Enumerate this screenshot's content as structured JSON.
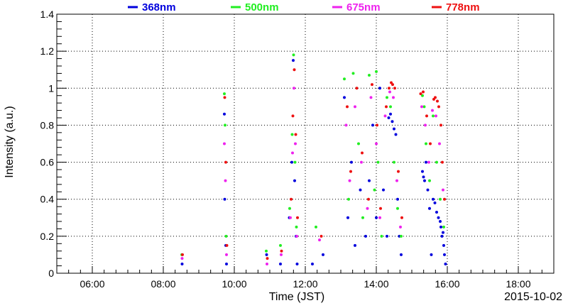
{
  "chart_data": {
    "type": "scatter",
    "title": "",
    "xlabel": "Time (JST)",
    "ylabel": "Intensity (a.u.)",
    "date_label": "2015-10-02",
    "x_unit": "hour of day (JST)",
    "xlim": [
      5.0,
      19.0
    ],
    "ylim": [
      0,
      1.4
    ],
    "grid": true,
    "legend_position": "top",
    "x_ticks": [
      {
        "value": 6,
        "label": "06:00"
      },
      {
        "value": 8,
        "label": "08:00"
      },
      {
        "value": 10,
        "label": "10:00"
      },
      {
        "value": 12,
        "label": "12:00"
      },
      {
        "value": 14,
        "label": "14:00"
      },
      {
        "value": 16,
        "label": "16:00"
      },
      {
        "value": 18,
        "label": "18:00"
      }
    ],
    "y_ticks": [
      {
        "value": 0,
        "label": "0"
      },
      {
        "value": 0.2,
        "label": "0.2"
      },
      {
        "value": 0.4,
        "label": "0.4"
      },
      {
        "value": 0.6,
        "label": "0.6"
      },
      {
        "value": 0.8,
        "label": "0.8"
      },
      {
        "value": 1.0,
        "label": "1"
      },
      {
        "value": 1.2,
        "label": "1.2"
      },
      {
        "value": 1.4,
        "label": "1.4"
      }
    ],
    "series": [
      {
        "name": "368nm",
        "color": "#0000dd",
        "x": [
          8.53,
          9.72,
          9.73,
          9.76,
          9.78,
          10.91,
          11.3,
          11.55,
          11.62,
          11.66,
          11.7,
          11.74,
          11.77,
          12.2,
          12.5,
          13.1,
          13.2,
          13.3,
          13.4,
          13.55,
          13.7,
          13.8,
          13.9,
          14.0,
          14.1,
          14.2,
          14.3,
          14.35,
          14.4,
          14.45,
          14.5,
          14.55,
          14.6,
          14.65,
          14.7,
          15.3,
          15.33,
          15.36,
          15.4,
          15.45,
          15.5,
          15.55,
          15.6,
          15.65,
          15.7,
          15.75,
          15.8,
          15.82,
          15.85,
          15.88,
          15.9,
          15.92,
          15.95
        ],
        "y": [
          0.05,
          0.86,
          0.4,
          0.15,
          0.05,
          0.1,
          0.05,
          0.3,
          0.6,
          1.15,
          0.5,
          0.2,
          0.05,
          0.05,
          0.1,
          0.95,
          0.3,
          0.6,
          0.15,
          0.45,
          0.2,
          0.5,
          0.8,
          0.3,
          1.0,
          0.45,
          0.2,
          0.84,
          0.86,
          0.82,
          0.78,
          0.75,
          0.4,
          0.2,
          0.1,
          0.55,
          0.52,
          0.5,
          0.6,
          0.45,
          0.35,
          0.1,
          0.4,
          0.38,
          0.33,
          0.3,
          0.28,
          0.25,
          0.2,
          0.22,
          0.15,
          0.1,
          0.05
        ]
      },
      {
        "name": "500nm",
        "color": "#22ee22",
        "x": [
          8.52,
          9.72,
          9.74,
          9.77,
          10.9,
          11.3,
          11.56,
          11.63,
          11.67,
          11.71,
          11.75,
          12.3,
          13.1,
          13.22,
          13.35,
          13.5,
          13.62,
          13.8,
          13.95,
          14.0,
          14.05,
          14.15,
          14.3,
          14.4,
          14.5,
          14.6,
          14.7,
          15.3,
          15.35,
          15.4,
          15.5,
          15.6,
          15.7,
          15.8,
          15.9
        ],
        "y": [
          0.1,
          0.97,
          0.8,
          0.2,
          0.12,
          0.15,
          0.35,
          0.75,
          1.18,
          0.6,
          0.25,
          0.25,
          1.05,
          0.4,
          1.08,
          0.7,
          0.3,
          1.07,
          0.45,
          1.09,
          0.6,
          0.2,
          0.95,
          0.9,
          0.6,
          0.35,
          0.2,
          0.96,
          0.9,
          0.7,
          0.5,
          0.85,
          0.6,
          0.4,
          0.25
        ]
      },
      {
        "name": "675nm",
        "color": "#ee22ee",
        "x": [
          8.53,
          9.72,
          9.75,
          9.78,
          10.92,
          11.32,
          11.58,
          11.64,
          11.68,
          11.72,
          11.76,
          12.4,
          13.15,
          13.25,
          13.4,
          13.58,
          13.75,
          13.85,
          14.0,
          14.1,
          14.25,
          14.38,
          14.48,
          14.58,
          14.68,
          15.28,
          15.38,
          15.48,
          15.58,
          15.68,
          15.78,
          15.88
        ],
        "y": [
          0.08,
          0.7,
          0.5,
          0.1,
          0.05,
          0.1,
          0.3,
          0.65,
          1.0,
          0.7,
          0.2,
          0.18,
          0.8,
          0.5,
          0.9,
          0.6,
          0.35,
          0.95,
          0.7,
          0.3,
          0.85,
          0.98,
          0.95,
          0.5,
          0.25,
          0.9,
          0.8,
          0.6,
          0.88,
          0.85,
          0.7,
          0.45
        ]
      },
      {
        "name": "778nm",
        "color": "#ee1111",
        "x": [
          8.54,
          9.73,
          9.76,
          9.79,
          10.93,
          11.33,
          11.6,
          11.65,
          11.69,
          11.73,
          11.78,
          12.45,
          13.18,
          13.28,
          13.45,
          13.6,
          13.78,
          13.88,
          14.02,
          14.12,
          14.28,
          14.36,
          14.42,
          14.46,
          14.52,
          14.62,
          14.72,
          15.25,
          15.32,
          15.42,
          15.52,
          15.62,
          15.66,
          15.72,
          15.76,
          15.82,
          15.86,
          15.92
        ],
        "y": [
          0.1,
          0.95,
          0.6,
          0.15,
          0.08,
          0.12,
          0.4,
          0.85,
          1.1,
          0.75,
          0.3,
          0.2,
          0.9,
          0.55,
          1.0,
          0.65,
          0.4,
          1.02,
          0.8,
          0.35,
          0.9,
          1.0,
          1.03,
          1.02,
          1.0,
          0.55,
          0.3,
          0.97,
          0.98,
          0.85,
          0.7,
          0.94,
          0.95,
          0.93,
          0.9,
          0.8,
          0.6,
          0.4
        ]
      }
    ]
  }
}
